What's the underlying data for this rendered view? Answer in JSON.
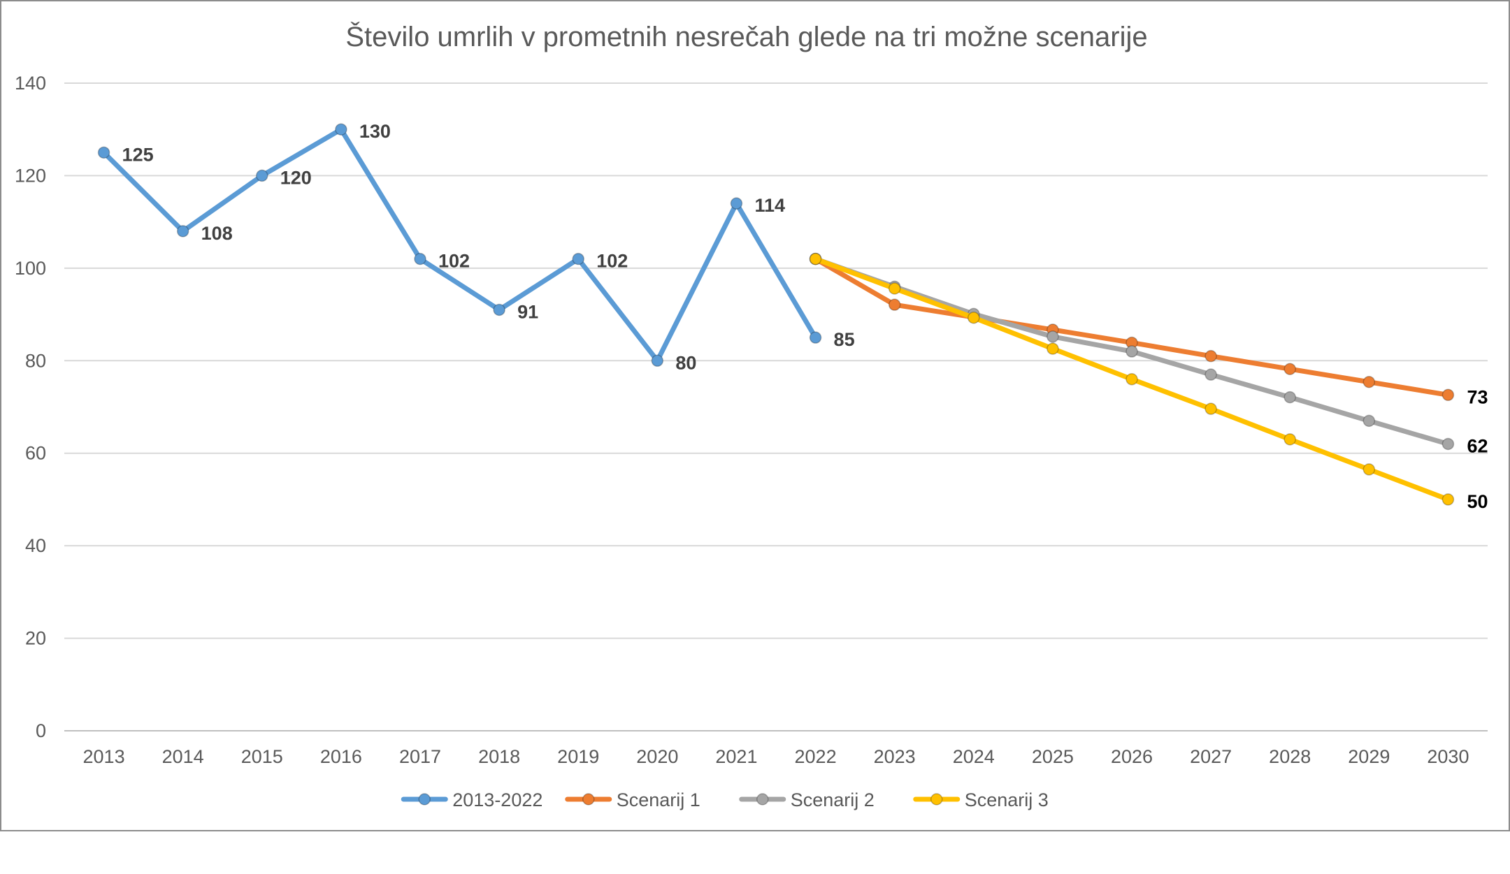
{
  "chart_data": {
    "type": "line",
    "title": "Število umrlih v prometnih nesrečah glede na tri možne scenarije",
    "xlabel": "",
    "ylabel": "",
    "ylim": [
      0,
      140
    ],
    "yticks": [
      0,
      20,
      40,
      60,
      80,
      100,
      120,
      140
    ],
    "grid": true,
    "legend": "bottom-center",
    "categories": [
      "2013",
      "2014",
      "2015",
      "2016",
      "2017",
      "2018",
      "2019",
      "2020",
      "2021",
      "2022",
      "2023",
      "2024",
      "2025",
      "2026",
      "2027",
      "2028",
      "2029",
      "2030"
    ],
    "series": [
      {
        "name": "2013-2022",
        "color": "#5b9bd5",
        "values": [
          125,
          108,
          120,
          130,
          102,
          91,
          102,
          80,
          114,
          85,
          null,
          null,
          null,
          null,
          null,
          null,
          null,
          null
        ],
        "labels": [
          "125",
          "108",
          "120",
          "130",
          "102",
          "91",
          "102",
          "80",
          "114",
          "85",
          null,
          null,
          null,
          null,
          null,
          null,
          null,
          null
        ]
      },
      {
        "name": "Scenarij 1",
        "color": "#ed7d31",
        "values": [
          null,
          null,
          null,
          null,
          null,
          null,
          null,
          null,
          null,
          102,
          92.1,
          89.4,
          86.7,
          83.9,
          81.0,
          78.2,
          75.4,
          72.6
        ],
        "labels": [
          null,
          null,
          null,
          null,
          null,
          null,
          null,
          null,
          null,
          null,
          null,
          null,
          null,
          null,
          null,
          null,
          null,
          "73"
        ]
      },
      {
        "name": "Scenarij 2",
        "color": "#a5a5a5",
        "values": [
          null,
          null,
          null,
          null,
          null,
          null,
          null,
          null,
          null,
          102,
          96.0,
          90.1,
          85.2,
          82.0,
          77.0,
          72.1,
          67.0,
          62.0
        ],
        "labels": [
          null,
          null,
          null,
          null,
          null,
          null,
          null,
          null,
          null,
          null,
          null,
          null,
          null,
          null,
          null,
          null,
          null,
          "62"
        ]
      },
      {
        "name": "Scenarij 3",
        "color": "#ffc000",
        "values": [
          null,
          null,
          null,
          null,
          null,
          null,
          null,
          null,
          null,
          102,
          95.6,
          89.3,
          82.6,
          76.0,
          69.6,
          63.0,
          56.5,
          50.0
        ],
        "labels": [
          null,
          null,
          null,
          null,
          null,
          null,
          null,
          null,
          null,
          null,
          null,
          null,
          null,
          null,
          null,
          null,
          null,
          "50"
        ]
      }
    ]
  }
}
